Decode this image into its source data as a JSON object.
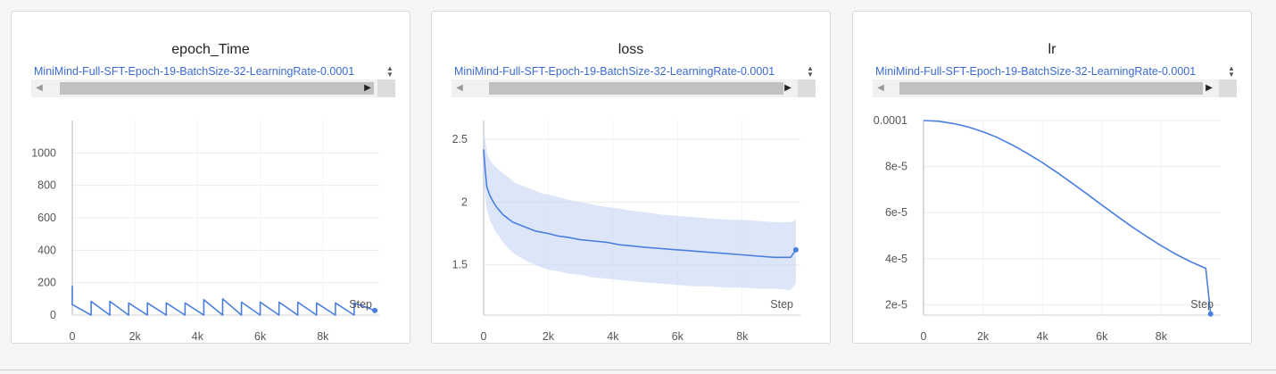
{
  "legend_label": "MiniMind-Full-SFT-Epoch-19-BatchSize-32-LearningRate-0.0001",
  "colors": {
    "line": "#4a7fe0",
    "band": "#c6d6f4",
    "grid": "#ececec",
    "axis": "#d0d0d0",
    "text": "#555555"
  },
  "icons": {
    "scroll_left": "◀",
    "scroll_right": "▶",
    "spin": "spinner-updown-icon"
  },
  "chart_data": [
    {
      "type": "line",
      "title": "epoch_Time",
      "xlabel": "Step",
      "ylabel": "",
      "xlim": [
        0,
        9800
      ],
      "ylim": [
        0,
        1200
      ],
      "xticks": [
        0,
        2000,
        4000,
        6000,
        8000
      ],
      "xtick_labels": [
        "0",
        "2k",
        "4k",
        "6k",
        "8k"
      ],
      "yticks": [
        0,
        200,
        400,
        600,
        800,
        1000
      ],
      "ytick_labels": [
        "0",
        "200",
        "400",
        "600",
        "800",
        "1000"
      ],
      "series": [
        {
          "x": [
            0,
            0,
            600,
            600,
            1200,
            1200,
            1800,
            1800,
            2400,
            2400,
            3000,
            3000,
            3600,
            3600,
            4200,
            4200,
            4800,
            4800,
            5400,
            5400,
            6000,
            6000,
            6600,
            6600,
            7200,
            7200,
            7800,
            7800,
            8400,
            8400,
            9000,
            9000,
            9660
          ],
          "y": [
            180,
            65,
            0,
            85,
            0,
            85,
            0,
            75,
            0,
            75,
            0,
            75,
            0,
            75,
            0,
            95,
            0,
            100,
            0,
            80,
            0,
            80,
            0,
            80,
            0,
            80,
            0,
            75,
            0,
            75,
            0,
            75,
            28
          ]
        }
      ]
    },
    {
      "type": "area",
      "title": "loss",
      "xlabel": "Step",
      "ylabel": "",
      "xlim": [
        0,
        9800
      ],
      "ylim": [
        1.1,
        2.65
      ],
      "xticks": [
        0,
        2000,
        4000,
        6000,
        8000
      ],
      "xtick_labels": [
        "0",
        "2k",
        "4k",
        "6k",
        "8k"
      ],
      "yticks": [
        1.5,
        2,
        2.5
      ],
      "ytick_labels": [
        "1.5",
        "2",
        "2.5"
      ],
      "series": [
        {
          "x": [
            0,
            50,
            100,
            200,
            300,
            400,
            500,
            600,
            700,
            800,
            900,
            1000,
            1200,
            1400,
            1600,
            1800,
            2000,
            2300,
            2600,
            3000,
            3400,
            3800,
            4200,
            4600,
            5000,
            5500,
            6000,
            6500,
            7000,
            7500,
            8000,
            8500,
            9000,
            9500,
            9660
          ],
          "y": [
            2.42,
            2.25,
            2.12,
            2.05,
            2.0,
            1.96,
            1.93,
            1.9,
            1.88,
            1.86,
            1.84,
            1.83,
            1.81,
            1.79,
            1.77,
            1.76,
            1.75,
            1.73,
            1.72,
            1.7,
            1.69,
            1.68,
            1.66,
            1.65,
            1.64,
            1.63,
            1.62,
            1.61,
            1.6,
            1.59,
            1.58,
            1.57,
            1.56,
            1.56,
            1.62
          ],
          "band_low": [
            2.2,
            2.05,
            1.95,
            1.85,
            1.8,
            1.75,
            1.72,
            1.68,
            1.65,
            1.62,
            1.6,
            1.58,
            1.55,
            1.52,
            1.5,
            1.48,
            1.46,
            1.45,
            1.43,
            1.42,
            1.4,
            1.39,
            1.38,
            1.37,
            1.36,
            1.35,
            1.34,
            1.33,
            1.33,
            1.32,
            1.32,
            1.31,
            1.31,
            1.3,
            1.35
          ],
          "band_high": [
            2.6,
            2.5,
            2.4,
            2.33,
            2.3,
            2.27,
            2.25,
            2.23,
            2.21,
            2.19,
            2.17,
            2.15,
            2.13,
            2.11,
            2.09,
            2.07,
            2.06,
            2.04,
            2.02,
            2.0,
            1.98,
            1.96,
            1.95,
            1.93,
            1.92,
            1.9,
            1.89,
            1.88,
            1.87,
            1.86,
            1.86,
            1.85,
            1.84,
            1.84,
            1.86
          ]
        }
      ]
    },
    {
      "type": "line",
      "title": "lr",
      "xlabel": "Step",
      "ylabel": "",
      "xlim": [
        0,
        10000
      ],
      "ylim": [
        1.55e-05,
        0.0001
      ],
      "xticks": [
        0,
        2000,
        4000,
        6000,
        8000
      ],
      "xtick_labels": [
        "0",
        "2k",
        "4k",
        "6k",
        "8k"
      ],
      "yticks": [
        2e-05,
        4e-05,
        6e-05,
        8e-05,
        0.0001
      ],
      "ytick_labels": [
        "2e-5",
        "4e-5",
        "6e-5",
        "8e-5",
        "0.0001"
      ],
      "series": [
        {
          "x": [
            0,
            500,
            1000,
            1500,
            2000,
            2500,
            3000,
            3500,
            4000,
            4500,
            5000,
            5500,
            6000,
            6500,
            7000,
            7500,
            8000,
            8500,
            9000,
            9500,
            9660
          ],
          "y": [
            0.0001,
            9.97e-05,
            9.87e-05,
            9.72e-05,
            9.51e-05,
            9.25e-05,
            8.93e-05,
            8.57e-05,
            8.17e-05,
            7.74e-05,
            7.28e-05,
            6.81e-05,
            6.33e-05,
            5.86e-05,
            5.4e-05,
            4.97e-05,
            4.56e-05,
            4.19e-05,
            3.86e-05,
            3.58e-05,
            1.6e-05
          ]
        }
      ]
    }
  ]
}
